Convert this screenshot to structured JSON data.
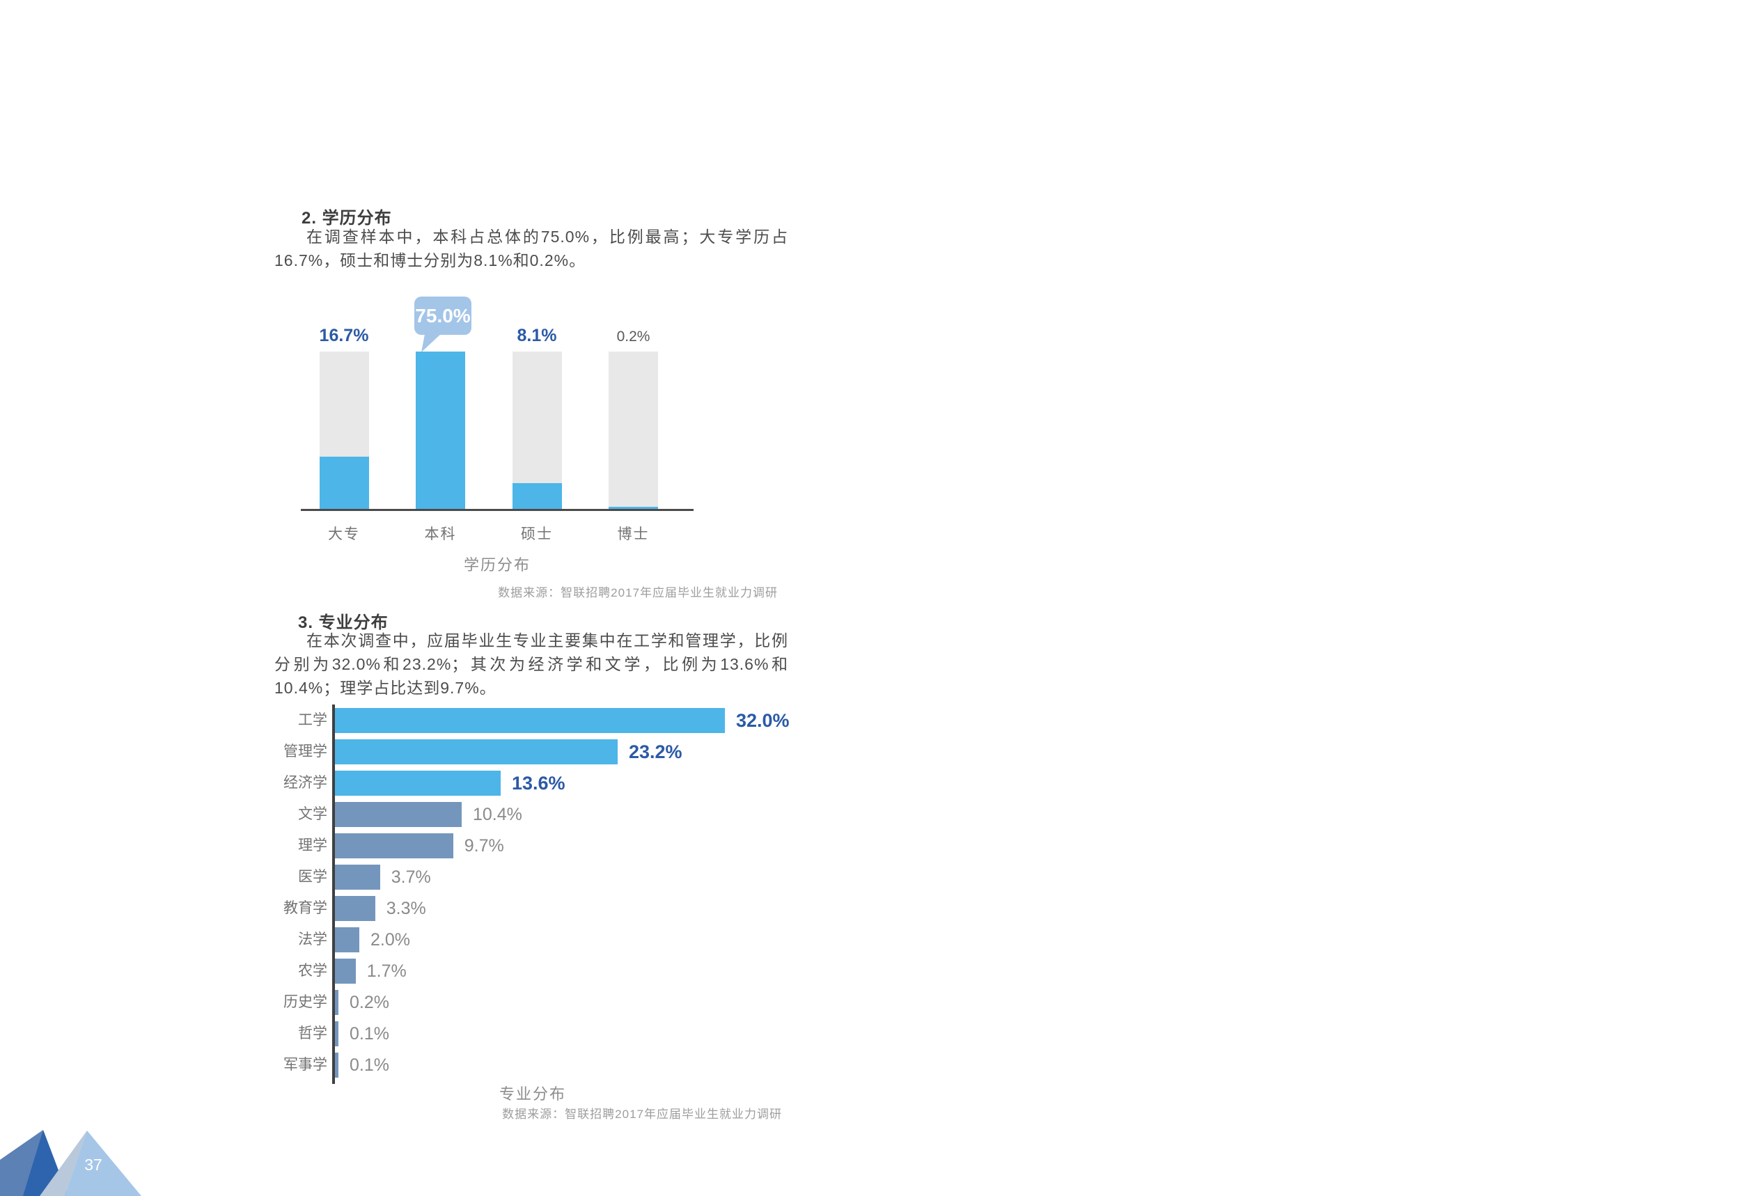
{
  "page": {
    "number": "37"
  },
  "section2": {
    "heading": "2. 学历分布",
    "paragraph": "在调查样本中，本科占总体的75.0%，比例最高；大专学历占16.7%，硕士和博士分别为8.1%和0.2%。"
  },
  "section3": {
    "heading": "3. 专业分布",
    "paragraph": "在本次调查中，应届毕业生专业主要集中在工学和管理学，比例分别为32.0%和23.2%；其次为经济学和文学，比例为13.6%和10.4%；理学占比达到9.7%。"
  },
  "chart_data": [
    {
      "type": "bar",
      "orientation": "vertical",
      "title": "学历分布",
      "source": "数据来源：智联招聘2017年应届毕业生就业力调研",
      "categories": [
        "大专",
        "本科",
        "硕士",
        "博士"
      ],
      "values": [
        16.7,
        75.0,
        8.1,
        0.2
      ],
      "labels": [
        "16.7%",
        "75.0%",
        "8.1%",
        "0.2%"
      ],
      "track_max": 50,
      "callout_index": 1,
      "strong_label_indexes": [
        0,
        2
      ],
      "grid": false,
      "legend": "none"
    },
    {
      "type": "bar",
      "orientation": "horizontal",
      "title": "专业分布",
      "source": "数据来源：智联招聘2017年应届毕业生就业力调研",
      "categories": [
        "工学",
        "管理学",
        "经济学",
        "文学",
        "理学",
        "医学",
        "教育学",
        "法学",
        "农学",
        "历史学",
        "哲学",
        "军事学"
      ],
      "values": [
        32.0,
        23.2,
        13.6,
        10.4,
        9.7,
        3.7,
        3.3,
        2.0,
        1.7,
        0.2,
        0.1,
        0.1
      ],
      "labels": [
        "32.0%",
        "23.2%",
        "13.6%",
        "10.4%",
        "9.7%",
        "3.7%",
        "3.3%",
        "2.0%",
        "1.7%",
        "0.2%",
        "0.1%",
        "0.1%"
      ],
      "xlim": [
        0,
        32
      ],
      "strong_label_indexes": [
        0,
        1,
        2
      ],
      "grid": false,
      "legend": "none"
    }
  ],
  "colors": {
    "sky_blue": "#4db5e8",
    "steel_blue": "#7496bc",
    "track_gray": "#e8e8e8",
    "value_label_blue": "#2b5aa6",
    "bubble_blue": "#a3c5e8",
    "axis_dark": "#4a4a4a",
    "mountain_slate": "#5b81b5",
    "mountain_blue": "#2e63ae",
    "mountain_pale": "#b9c8db",
    "mountain_light": "#a5c6e7"
  }
}
